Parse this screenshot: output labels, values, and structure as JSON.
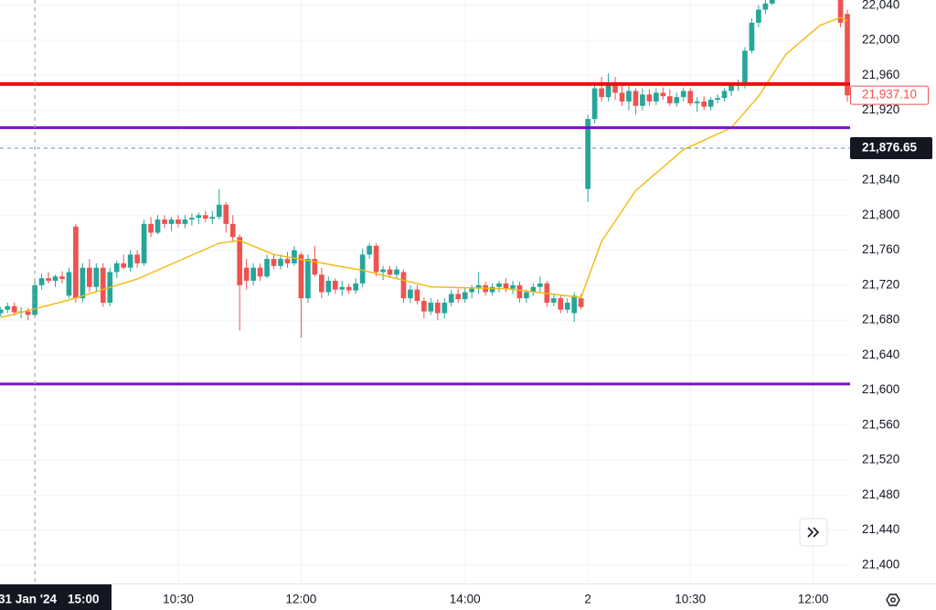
{
  "chart_data": {
    "type": "candlestick",
    "up_color": "#26a69a",
    "down_color": "#ef5350",
    "grid": true,
    "xlim": [
      -0.1,
      124.4
    ],
    "ylim": [
      21379,
      22046
    ],
    "yticks": [
      {
        "value": 21400,
        "label": "21,400"
      },
      {
        "value": 21440,
        "label": "21,440"
      },
      {
        "value": 21480,
        "label": "21,480"
      },
      {
        "value": 21520,
        "label": "21,520"
      },
      {
        "value": 21560,
        "label": "21,560"
      },
      {
        "value": 21600,
        "label": "21,600"
      },
      {
        "value": 21640,
        "label": "21,640"
      },
      {
        "value": 21680,
        "label": "21,680"
      },
      {
        "value": 21720,
        "label": "21,720"
      },
      {
        "value": 21760,
        "label": "21,760"
      },
      {
        "value": 21800,
        "label": "21,800"
      },
      {
        "value": 21840,
        "label": "21,840"
      },
      {
        "value": 21880,
        "label": "21,880"
      },
      {
        "value": 21920,
        "label": "21,920"
      },
      {
        "value": 21960,
        "label": "21,960"
      },
      {
        "value": 22000,
        "label": "22,000"
      },
      {
        "value": 22040,
        "label": "22,040"
      }
    ],
    "xticks": [
      {
        "value": 26,
        "label": "10:30"
      },
      {
        "value": 44,
        "label": "12:00"
      },
      {
        "value": 68,
        "label": "14:00"
      },
      {
        "value": 86,
        "label": "2"
      },
      {
        "value": 101,
        "label": "10:30"
      },
      {
        "value": 119,
        "label": "12:00"
      }
    ],
    "ohlc": [
      [
        21688,
        21695,
        21684,
        21692
      ],
      [
        21692,
        21700,
        21688,
        21696
      ],
      [
        21696,
        21700,
        21685,
        21689
      ],
      [
        21689,
        21695,
        21682,
        21690
      ],
      [
        21690,
        21694,
        21680,
        21686
      ],
      [
        21686,
        21725,
        21684,
        21720
      ],
      [
        21720,
        21733,
        21715,
        21728
      ],
      [
        21728,
        21735,
        21722,
        21725
      ],
      [
        21725,
        21732,
        21718,
        21730
      ],
      [
        21730,
        21736,
        21722,
        21727
      ],
      [
        21708,
        21740,
        21705,
        21735
      ],
      [
        21787,
        21790,
        21700,
        21705
      ],
      [
        21705,
        21745,
        21700,
        21740
      ],
      [
        21740,
        21750,
        21712,
        21718
      ],
      [
        21718,
        21745,
        21712,
        21740
      ],
      [
        21740,
        21745,
        21695,
        21700
      ],
      [
        21700,
        21740,
        21696,
        21735
      ],
      [
        21735,
        21748,
        21728,
        21745
      ],
      [
        21745,
        21755,
        21738,
        21740
      ],
      [
        21740,
        21760,
        21735,
        21755
      ],
      [
        21755,
        21760,
        21740,
        21745
      ],
      [
        21745,
        21795,
        21742,
        21790
      ],
      [
        21790,
        21798,
        21775,
        21780
      ],
      [
        21780,
        21800,
        21778,
        21795
      ],
      [
        21795,
        21800,
        21785,
        21790
      ],
      [
        21790,
        21798,
        21782,
        21795
      ],
      [
        21795,
        21800,
        21786,
        21790
      ],
      [
        21790,
        21800,
        21785,
        21795
      ],
      [
        21795,
        21802,
        21788,
        21797
      ],
      [
        21797,
        21803,
        21790,
        21800
      ],
      [
        21800,
        21805,
        21792,
        21796
      ],
      [
        21796,
        21805,
        21790,
        21798
      ],
      [
        21798,
        21830,
        21795,
        21812
      ],
      [
        21812,
        21815,
        21780,
        21790
      ],
      [
        21790,
        21800,
        21770,
        21775
      ],
      [
        21775,
        21778,
        21668,
        21720
      ],
      [
        21740,
        21750,
        21715,
        21725
      ],
      [
        21725,
        21745,
        21720,
        21740
      ],
      [
        21740,
        21745,
        21725,
        21730
      ],
      [
        21730,
        21755,
        21728,
        21750
      ],
      [
        21750,
        21755,
        21738,
        21742
      ],
      [
        21742,
        21755,
        21738,
        21750
      ],
      [
        21750,
        21758,
        21740,
        21745
      ],
      [
        21745,
        21765,
        21742,
        21760
      ],
      [
        21755,
        21758,
        21660,
        21705
      ],
      [
        21705,
        21755,
        21700,
        21750
      ],
      [
        21750,
        21765,
        21730,
        21732
      ],
      [
        21732,
        21740,
        21705,
        21712
      ],
      [
        21712,
        21730,
        21708,
        21725
      ],
      [
        21725,
        21728,
        21710,
        21715
      ],
      [
        21715,
        21725,
        21708,
        21718
      ],
      [
        21718,
        21722,
        21710,
        21714
      ],
      [
        21714,
        21728,
        21710,
        21722
      ],
      [
        21722,
        21762,
        21718,
        21755
      ],
      [
        21755,
        21768,
        21750,
        21765
      ],
      [
        21765,
        21768,
        21730,
        21735
      ],
      [
        21735,
        21742,
        21726,
        21738
      ],
      [
        21738,
        21742,
        21728,
        21732
      ],
      [
        21732,
        21742,
        21728,
        21738
      ],
      [
        21735,
        21738,
        21700,
        21705
      ],
      [
        21705,
        21720,
        21700,
        21715
      ],
      [
        21715,
        21720,
        21698,
        21702
      ],
      [
        21702,
        21706,
        21682,
        21690
      ],
      [
        21690,
        21705,
        21686,
        21700
      ],
      [
        21700,
        21704,
        21680,
        21688
      ],
      [
        21688,
        21705,
        21682,
        21700
      ],
      [
        21700,
        21715,
        21696,
        21710
      ],
      [
        21710,
        21716,
        21700,
        21704
      ],
      [
        21704,
        21718,
        21700,
        21712
      ],
      [
        21712,
        21720,
        21705,
        21716
      ],
      [
        21716,
        21735,
        21710,
        21720
      ],
      [
        21720,
        21724,
        21708,
        21712
      ],
      [
        21712,
        21722,
        21708,
        21718
      ],
      [
        21718,
        21725,
        21712,
        21722
      ],
      [
        21722,
        21728,
        21712,
        21716
      ],
      [
        21716,
        21725,
        21710,
        21720
      ],
      [
        21720,
        21724,
        21700,
        21705
      ],
      [
        21705,
        21715,
        21700,
        21712
      ],
      [
        21712,
        21722,
        21708,
        21718
      ],
      [
        21718,
        21730,
        21712,
        21722
      ],
      [
        21722,
        21725,
        21695,
        21700
      ],
      [
        21700,
        21710,
        21696,
        21705
      ],
      [
        21705,
        21708,
        21688,
        21692
      ],
      [
        21692,
        21705,
        21688,
        21700
      ],
      [
        21688,
        21712,
        21678,
        21708
      ],
      [
        21705,
        21710,
        21692,
        21695
      ],
      [
        21830,
        21915,
        21815,
        21910
      ],
      [
        21910,
        21950,
        21905,
        21945
      ],
      [
        21945,
        21958,
        21930,
        21935
      ],
      [
        21935,
        21962,
        21930,
        21952
      ],
      [
        21952,
        21958,
        21932,
        21940
      ],
      [
        21940,
        21952,
        21925,
        21930
      ],
      [
        21930,
        21948,
        21920,
        21942
      ],
      [
        21942,
        21945,
        21915,
        21925
      ],
      [
        21925,
        21945,
        21920,
        21938
      ],
      [
        21938,
        21944,
        21925,
        21930
      ],
      [
        21930,
        21945,
        21926,
        21940
      ],
      [
        21940,
        21946,
        21932,
        21936
      ],
      [
        21936,
        21944,
        21925,
        21928
      ],
      [
        21928,
        21940,
        21924,
        21935
      ],
      [
        21935,
        21946,
        21930,
        21942
      ],
      [
        21942,
        21945,
        21925,
        21928
      ],
      [
        21928,
        21935,
        21918,
        21930
      ],
      [
        21930,
        21936,
        21920,
        21924
      ],
      [
        21924,
        21935,
        21920,
        21932
      ],
      [
        21932,
        21938,
        21928,
        21934
      ],
      [
        21934,
        21945,
        21930,
        21942
      ],
      [
        21942,
        21952,
        21936,
        21948
      ],
      [
        21948,
        21955,
        21942,
        21950
      ],
      [
        21948,
        21992,
        21945,
        21988
      ],
      [
        21988,
        22025,
        21985,
        22020
      ],
      [
        22020,
        22040,
        22015,
        22035
      ],
      [
        22035,
        22046,
        22030,
        22042
      ],
      [
        22042,
        22050,
        22040,
        22046
      ],
      null,
      null,
      null,
      null,
      null,
      null,
      null,
      null,
      null,
      [
        22060,
        22065,
        22015,
        22020
      ],
      [
        22030,
        22035,
        21930,
        21937
      ]
    ],
    "moving_average": {
      "color": "#f2b90d",
      "x": [
        0,
        10,
        20,
        32,
        35,
        40,
        53,
        63,
        74,
        85,
        88,
        93,
        100,
        107,
        111,
        115,
        120,
        123,
        124
      ],
      "values": [
        21683,
        21703,
        21727,
        21768,
        21771,
        21755,
        21737,
        21718,
        21716,
        21706,
        21770,
        21828,
        21875,
        21900,
        21936,
        21984,
        22017,
        22026,
        22022
      ]
    },
    "hlines": [
      {
        "value": 21950,
        "color": "#f20d0d",
        "width": 4
      },
      {
        "value": 21900,
        "color": "#7b0fc9",
        "width": 3
      },
      {
        "value": 21607,
        "color": "#7b0fc9",
        "width": 3
      }
    ],
    "last_price": {
      "value": 21937.1,
      "label": "21,937.10"
    },
    "crosshair": {
      "x": 5,
      "price": {
        "value": 21876.65,
        "label": "21,876.65"
      },
      "date": "31 Jan '24",
      "time": "15:00"
    }
  }
}
